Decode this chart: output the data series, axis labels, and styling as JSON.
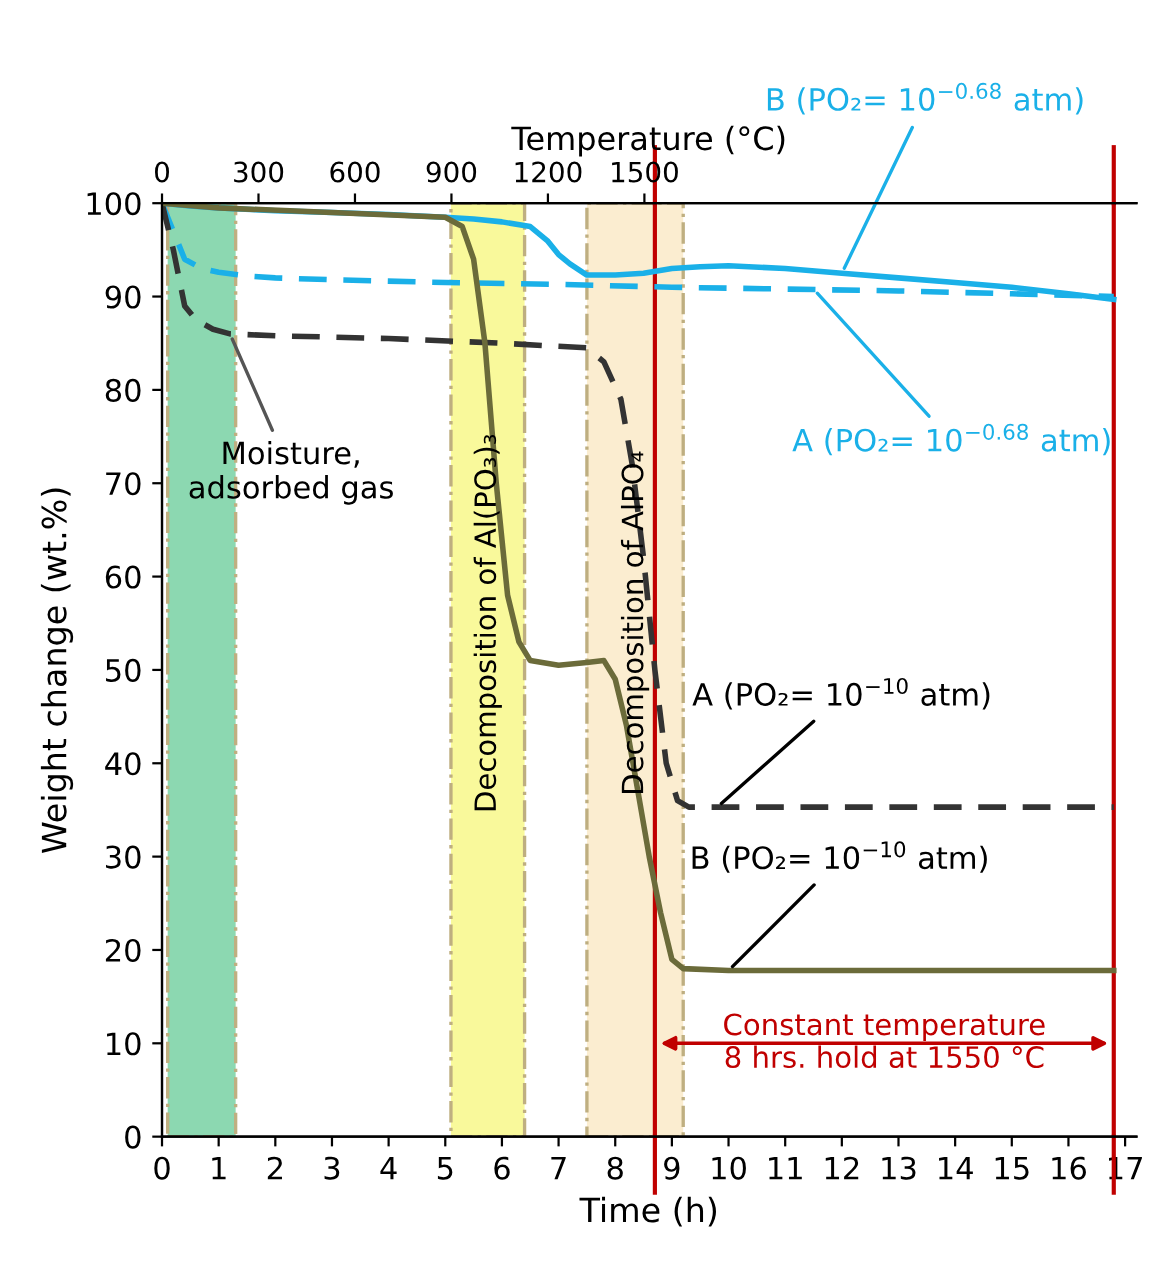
{
  "chart_data": {
    "type": "line",
    "xlabel": "Time (h)",
    "ylabel": "Weight change (wt.%)",
    "x2label": "Temperature (°C)",
    "xlim": [
      0,
      17.2
    ],
    "xticks": [
      0,
      1,
      2,
      3,
      4,
      5,
      6,
      7,
      8,
      9,
      10,
      11,
      12,
      13,
      14,
      15,
      16,
      17
    ],
    "x2lim": [
      0,
      3030
    ],
    "x2ticks": [
      0,
      300,
      600,
      900,
      1200,
      1500
    ],
    "ylim": [
      0,
      100
    ],
    "yticks": [
      0,
      10,
      20,
      30,
      40,
      50,
      60,
      70,
      80,
      90,
      100
    ],
    "grid": false,
    "legend": false,
    "series": [
      {
        "color": "#1ab0e8",
        "line_style": "solid",
        "x": [
          0,
          0.5,
          1,
          2,
          3,
          4,
          5,
          5.5,
          6,
          6.5,
          6.8,
          7,
          7.2,
          7.5,
          8,
          8.5,
          9,
          9.5,
          10,
          11,
          12,
          13,
          14,
          15,
          16,
          16.8
        ],
        "values": [
          100,
          99.7,
          99.5,
          99.2,
          99,
          98.8,
          98.5,
          98.3,
          98,
          97.5,
          96,
          94.5,
          93.5,
          92.3,
          92.3,
          92.5,
          93,
          93.2,
          93.3,
          93,
          92.5,
          92,
          91.5,
          91,
          90.3,
          89.7
        ]
      },
      {
        "color": "#1ab0e8",
        "line_style": "dashed",
        "x": [
          0,
          0.2,
          0.4,
          0.7,
          1,
          1.5,
          2,
          3,
          5,
          7,
          9,
          11,
          13,
          15,
          16.8
        ],
        "values": [
          100,
          97,
          94,
          93,
          92.6,
          92.2,
          92,
          91.8,
          91.5,
          91.3,
          91,
          90.8,
          90.6,
          90.3,
          90
        ]
      },
      {
        "color": "#333333",
        "line_style": "dashed",
        "x": [
          0,
          0.2,
          0.4,
          0.6,
          0.9,
          1.2,
          2,
          4,
          6,
          7.5,
          7.8,
          8.1,
          8.3,
          8.5,
          8.7,
          8.9,
          9.1,
          9.3,
          10,
          12,
          14,
          16.8
        ],
        "values": [
          100,
          95,
          89,
          87.5,
          86.5,
          86,
          85.8,
          85.5,
          85,
          84.5,
          83,
          79,
          72,
          62,
          50,
          40,
          36,
          35.3,
          35.3,
          35.3,
          35.3,
          35.3
        ]
      },
      {
        "color": "#6b6b3a",
        "line_style": "solid",
        "x": [
          0,
          1,
          3,
          5,
          5.3,
          5.5,
          5.7,
          5.9,
          6.1,
          6.3,
          6.5,
          7,
          7.5,
          7.8,
          8,
          8.2,
          8.4,
          8.6,
          8.8,
          9,
          9.2,
          10,
          12,
          14,
          16.8
        ],
        "values": [
          100,
          99.5,
          99,
          98.5,
          97.5,
          94,
          85,
          70,
          58,
          53,
          51,
          50.5,
          50.8,
          51,
          49,
          44,
          37,
          30,
          24,
          19,
          18,
          17.8,
          17.8,
          17.8,
          17.8
        ]
      }
    ],
    "bands": [
      {
        "axis": "x",
        "from": 0.1,
        "to": 1.3,
        "label": null,
        "color": "#2eb872"
      },
      {
        "axis": "x",
        "from": 5.1,
        "to": 6.4,
        "label": "Decomposition of Al(PO₃)₃",
        "color": "#f5f54a"
      },
      {
        "axis": "x",
        "from": 7.5,
        "to": 9.2,
        "label": "Decomposition of AlPO₄",
        "color": "#f8dfaa"
      }
    ],
    "ref_lines": [
      {
        "axis": "x",
        "value": 8.7,
        "label": null,
        "color": "#c00000"
      },
      {
        "axis": "x",
        "value": 16.8,
        "label": null,
        "color": "#c00000"
      }
    ],
    "annotations": [
      {
        "text": "Moisture,\nadsorbed gas",
        "x": 1.2,
        "y": 86
      },
      {
        "text": "B (PO₂= 10$^{−0.68}$ atm)",
        "x": 12,
        "y": 92.5
      },
      {
        "text": "A (PO₂= 10$^{−0.68}$ atm)",
        "x": 11.5,
        "y": 90.8
      },
      {
        "text": "A (PO₂= 10$^{−10}$ atm)",
        "x": 9.8,
        "y": 35.3
      },
      {
        "text": "B (PO₂= 10$^{−10}$ atm)",
        "x": 10,
        "y": 17.8
      },
      "Constant temperature\n8 hrs. hold at 1550 °C"
    ]
  }
}
